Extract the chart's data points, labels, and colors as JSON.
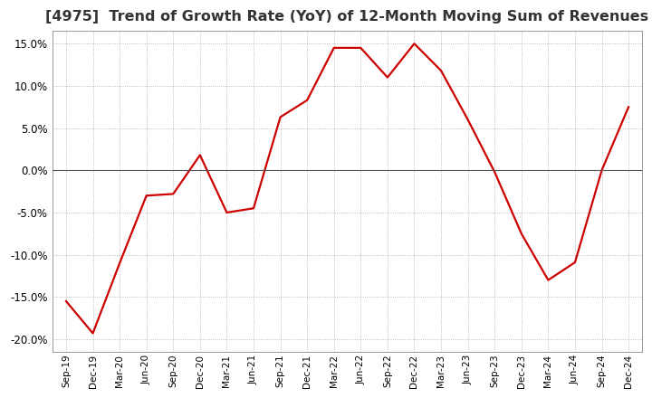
{
  "title": "[4975]  Trend of Growth Rate (YoY) of 12-Month Moving Sum of Revenues",
  "title_fontsize": 11.5,
  "line_color": "#cc0000",
  "line_width": 1.6,
  "background_color": "#ffffff",
  "plot_bg_color": "#ffffff",
  "grid_color": "#aaaaaa",
  "zero_line_color": "#555555",
  "ylim": [
    -0.215,
    0.165
  ],
  "yticks": [
    -0.2,
    -0.15,
    -0.1,
    -0.05,
    0.0,
    0.05,
    0.1,
    0.15
  ],
  "xlabels": [
    "Sep-19",
    "Dec-19",
    "Mar-20",
    "Jun-20",
    "Sep-20",
    "Dec-20",
    "Mar-21",
    "Jun-21",
    "Sep-21",
    "Dec-21",
    "Mar-22",
    "Jun-22",
    "Sep-22",
    "Dec-22",
    "Mar-23",
    "Jun-23",
    "Sep-23",
    "Dec-23",
    "Mar-24",
    "Jun-24",
    "Sep-24",
    "Dec-24"
  ],
  "values": [
    -0.155,
    -0.193,
    -0.11,
    -0.03,
    -0.028,
    0.018,
    -0.05,
    -0.045,
    0.063,
    0.083,
    0.145,
    0.145,
    0.11,
    0.15,
    0.118,
    0.06,
    -0.002,
    -0.075,
    -0.13,
    -0.109,
    0.0,
    0.075
  ]
}
